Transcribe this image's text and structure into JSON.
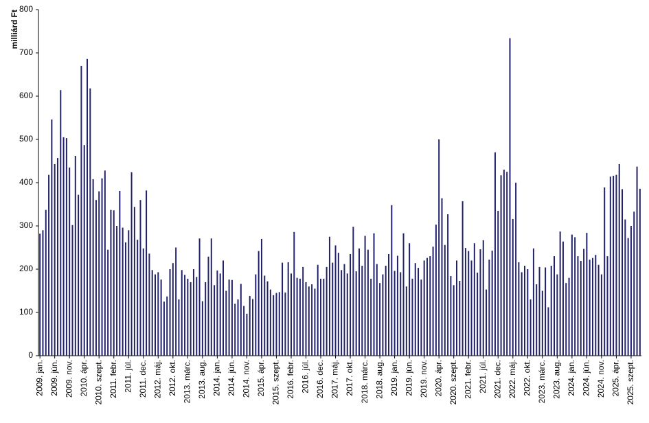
{
  "chart_data": {
    "type": "bar",
    "y_label": "milliárd Ft",
    "color": "#22226a",
    "ylim": [
      0,
      800
    ],
    "yticks": [
      0,
      100,
      200,
      300,
      400,
      500,
      600,
      700,
      800
    ],
    "grid": false,
    "categories": [
      "2009. jan.",
      null,
      null,
      null,
      null,
      "2009. jún.",
      null,
      null,
      null,
      null,
      "2009. nov.",
      null,
      null,
      null,
      null,
      "2010. ápr.",
      null,
      null,
      null,
      null,
      "2010. szept.",
      null,
      null,
      null,
      null,
      "2011. febr.",
      null,
      null,
      null,
      null,
      "2011. júl.",
      null,
      null,
      null,
      null,
      "2011. dec.",
      null,
      null,
      null,
      null,
      "2012. máj.",
      null,
      null,
      null,
      null,
      "2012. okt.",
      null,
      null,
      null,
      null,
      "2013. márc.",
      null,
      null,
      null,
      null,
      "2013. aug.",
      null,
      null,
      null,
      null,
      "2014. jan.",
      null,
      null,
      null,
      null,
      "2014. jún.",
      null,
      null,
      null,
      null,
      "2014. nov.",
      null,
      null,
      null,
      null,
      "2015. ápr.",
      null,
      null,
      null,
      null,
      "2015. szept.",
      null,
      null,
      null,
      null,
      "2016. febr.",
      null,
      null,
      null,
      null,
      "2016. júl.",
      null,
      null,
      null,
      null,
      "2016. dec.",
      null,
      null,
      null,
      null,
      "2017. máj.",
      null,
      null,
      null,
      null,
      "2017. okt.",
      null,
      null,
      null,
      null,
      "2018. márc.",
      null,
      null,
      null,
      null,
      "2018. aug.",
      null,
      null,
      null,
      null,
      "2019. jan.",
      null,
      null,
      null,
      null,
      "2019. jún.",
      null,
      null,
      null,
      null,
      "2019. nov.",
      null,
      null,
      null,
      null,
      "2020. ápr.",
      null,
      null,
      null,
      null,
      "2020. szept.",
      null,
      null,
      null,
      null,
      "2021. febr.",
      null,
      null,
      null,
      null,
      "2021. júl.",
      null,
      null,
      null,
      null,
      "2021. dec.",
      null,
      null,
      null,
      null,
      "2022. máj.",
      null,
      null,
      null,
      null,
      "2022. okt.",
      null,
      null,
      null,
      null,
      "2023. márc.",
      null,
      null,
      null,
      null,
      "2023. aug.",
      null,
      null,
      null,
      null,
      "2024. jan.",
      null,
      null,
      null,
      null,
      "2024. jún.",
      null,
      null,
      null,
      null,
      "2024. nov.",
      null,
      null,
      null,
      null,
      "2025. ápr.",
      null,
      null,
      null,
      null,
      "2025. szept.",
      null,
      null,
      null
    ],
    "values": [
      282,
      290,
      337,
      418,
      546,
      443,
      457,
      614,
      505,
      503,
      435,
      302,
      462,
      372,
      670,
      487,
      686,
      618,
      408,
      360,
      380,
      410,
      428,
      245,
      337,
      336,
      300,
      381,
      296,
      262,
      290,
      424,
      344,
      268,
      360,
      248,
      382,
      236,
      198,
      188,
      193,
      176,
      125,
      137,
      200,
      214,
      250,
      130,
      198,
      187,
      178,
      170,
      200,
      182,
      271,
      126,
      170,
      229,
      271,
      163,
      197,
      190,
      220,
      150,
      176,
      175,
      120,
      130,
      166,
      115,
      97,
      138,
      131,
      188,
      242,
      270,
      185,
      172,
      153,
      140,
      145,
      147,
      215,
      146,
      216,
      190,
      286,
      180,
      178,
      205,
      170,
      160,
      165,
      155,
      210,
      178,
      178,
      205,
      275,
      215,
      255,
      238,
      198,
      212,
      190,
      235,
      298,
      195,
      248,
      208,
      277,
      245,
      178,
      283,
      212,
      168,
      188,
      208,
      235,
      348,
      196,
      231,
      193,
      283,
      160,
      260,
      178,
      214,
      203,
      176,
      220,
      226,
      230,
      252,
      303,
      500,
      364,
      256,
      327,
      184,
      163,
      220,
      173,
      357,
      249,
      242,
      220,
      260,
      192,
      246,
      267,
      153,
      222,
      243,
      470,
      335,
      417,
      430,
      425,
      734,
      316,
      400,
      216,
      193,
      208,
      200,
      130,
      248,
      165,
      205,
      150,
      204,
      112,
      208,
      230,
      188,
      287,
      264,
      168,
      180,
      280,
      274,
      230,
      219,
      247,
      284,
      222,
      226,
      233,
      210,
      188,
      389,
      230,
      414,
      416,
      418,
      443,
      385,
      315,
      272,
      300,
      333,
      437,
      386
    ]
  }
}
